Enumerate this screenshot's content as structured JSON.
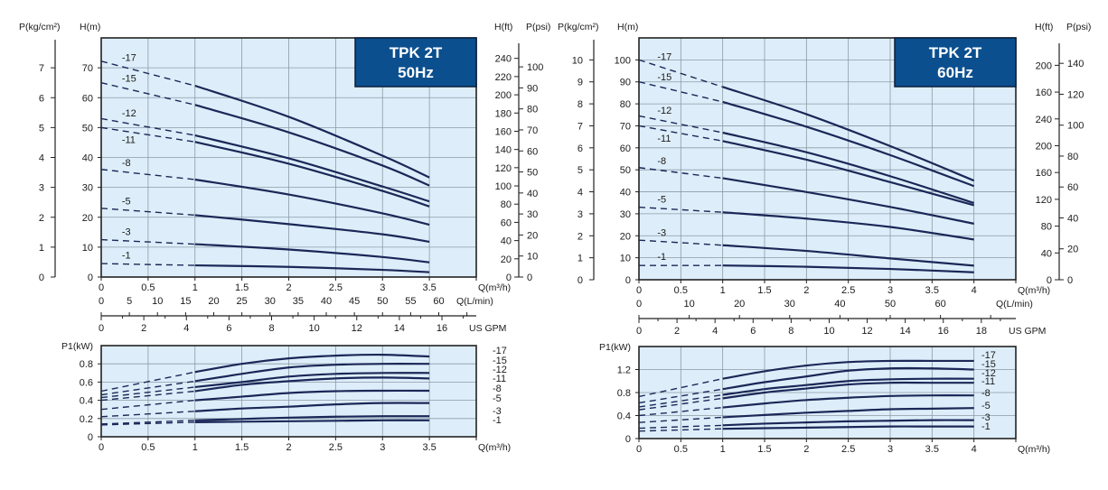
{
  "colors": {
    "plot_background": "#ddeefa",
    "grid": "#8d9aa6",
    "curve": "#1b2757",
    "title_box": "#0b4f8e",
    "title_text": "#ffffff"
  },
  "chart_data": [
    {
      "type": "line",
      "title_lines": [
        "TPK 2T",
        "50Hz"
      ],
      "xlabel": "Q(m³/h)",
      "xlim": [
        0,
        4
      ],
      "x_ticks": [
        "0",
        "0.5",
        "1",
        "1.5",
        "2",
        "2.5",
        "3",
        "3.5"
      ],
      "ylabel": "H(m)",
      "ylim": [
        0,
        80
      ],
      "y_ticks": [
        "0",
        "10",
        "20",
        "30",
        "40",
        "50",
        "60",
        "70"
      ],
      "grid": true,
      "left_axis": {
        "label": "P(kg/cm²)",
        "ticks": [
          "0",
          "1",
          "2",
          "3",
          "4",
          "5",
          "6",
          "7"
        ]
      },
      "right_axis_ft": {
        "label": "H(ft)",
        "ticks": [
          "0",
          "20",
          "40",
          "60",
          "80",
          "100",
          "120",
          "140",
          "160",
          "180",
          "200",
          "220",
          "240"
        ]
      },
      "right_axis_psi": {
        "label": "P(psi)",
        "ticks": [
          "0",
          "10",
          "20",
          "30",
          "40",
          "50",
          "60",
          "70",
          "80",
          "90",
          "100"
        ]
      },
      "axis_lmin": {
        "label": "Q(L/min)",
        "ticks": [
          "0",
          "5",
          "10",
          "15",
          "20",
          "25",
          "30",
          "35",
          "40",
          "45",
          "50",
          "55",
          "60"
        ]
      },
      "axis_gpm": {
        "label": "US GPM",
        "ticks": [
          "0",
          "2",
          "4",
          "6",
          "8",
          "10",
          "12",
          "14",
          "16"
        ]
      },
      "dashed_until_x": 1,
      "x": [
        0,
        1,
        2,
        3,
        3.5
      ],
      "series": [
        {
          "name": "-17",
          "values": [
            72.2,
            64,
            53.6,
            40.6,
            33.3
          ]
        },
        {
          "name": "-15",
          "values": [
            65,
            57.6,
            48.4,
            37.3,
            30.6
          ]
        },
        {
          "name": "-12",
          "values": [
            53,
            47.4,
            39.7,
            30.3,
            25.3
          ]
        },
        {
          "name": "-11",
          "values": [
            50,
            45.2,
            37.9,
            28.8,
            23.6
          ]
        },
        {
          "name": "-8",
          "values": [
            36,
            32.6,
            27.6,
            21.3,
            17.5
          ]
        },
        {
          "name": "-5",
          "values": [
            23,
            20.7,
            17.7,
            14.3,
            11.8
          ]
        },
        {
          "name": "-3",
          "values": [
            12.5,
            11,
            9.2,
            6.7,
            4.9
          ]
        },
        {
          "name": "-1",
          "values": [
            4.5,
            3.9,
            3.4,
            2.4,
            1.6
          ]
        }
      ]
    },
    {
      "type": "line",
      "title_lines": [
        "TPK 2T",
        "60Hz"
      ],
      "xlabel": "Q(m³/h)",
      "xlim": [
        0,
        4.5
      ],
      "x_ticks": [
        "0",
        "0.5",
        "1",
        "1.5",
        "2",
        "2.5",
        "3",
        "3.5",
        "4"
      ],
      "ylabel": "H(m)",
      "ylim": [
        0,
        110
      ],
      "y_ticks": [
        "0",
        "10",
        "20",
        "30",
        "40",
        "50",
        "60",
        "70",
        "80",
        "90",
        "100"
      ],
      "grid": true,
      "left_axis": {
        "label": "P(kg/cm²)",
        "ticks": [
          "0",
          "1",
          "2",
          "3",
          "4",
          "5",
          "6",
          "7",
          "8",
          "9",
          "10"
        ]
      },
      "right_axis_ft": {
        "label": "H(ft)",
        "ticks": [
          "0",
          "40",
          "80",
          "120",
          "160",
          "200",
          "240",
          "160",
          "200"
        ]
      },
      "right_axis_psi": {
        "label": "P(psi)",
        "ticks": [
          "0",
          "20",
          "40",
          "60",
          "80",
          "100",
          "120",
          "140"
        ]
      },
      "axis_lmin": {
        "label": "Q(L/min)",
        "ticks": [
          "0",
          "10",
          "20",
          "30",
          "40",
          "50",
          "60"
        ]
      },
      "axis_gpm": {
        "label": "US GPM",
        "ticks": [
          "0",
          "2",
          "4",
          "6",
          "8",
          "10",
          "12",
          "14",
          "16",
          "18"
        ]
      },
      "dashed_until_x": 1,
      "x": [
        0,
        1,
        2,
        3,
        4
      ],
      "series": [
        {
          "name": "-17",
          "values": [
            100,
            87.7,
            75.3,
            60.8,
            45.1
          ]
        },
        {
          "name": "-15",
          "values": [
            90,
            80.9,
            69.6,
            56.7,
            42.6
          ]
        },
        {
          "name": "-12",
          "values": [
            74.5,
            66.9,
            58,
            47.1,
            34.9
          ]
        },
        {
          "name": "-11",
          "values": [
            70,
            63.1,
            54.6,
            44.4,
            33.9
          ]
        },
        {
          "name": "-8",
          "values": [
            51,
            46.2,
            39.9,
            33.1,
            25.5
          ]
        },
        {
          "name": "-5",
          "values": [
            33,
            30.7,
            27.8,
            24,
            18.3
          ]
        },
        {
          "name": "-3",
          "values": [
            18,
            15.7,
            13.1,
            9.7,
            6.4
          ]
        },
        {
          "name": "-1",
          "values": [
            6.5,
            6.5,
            5.9,
            4.9,
            3.4
          ]
        }
      ]
    },
    {
      "type": "line",
      "xlabel": "Q(m³/h)",
      "xlim": [
        0,
        4
      ],
      "x_ticks": [
        "0",
        "0.5",
        "1",
        "1.5",
        "2",
        "2.5",
        "3",
        "3.5"
      ],
      "ylabel": "P1(kW)",
      "ylim": [
        0,
        1.0
      ],
      "y_ticks": [
        "0",
        "0.2",
        "0.4",
        "0.6",
        "0.8"
      ],
      "grid": true,
      "dashed_until_x": 1,
      "x": [
        0,
        1,
        1.5,
        2,
        2.5,
        3,
        3.5
      ],
      "series": [
        {
          "name": "-17",
          "values": [
            0.5,
            0.71,
            0.8,
            0.86,
            0.89,
            0.9,
            0.88
          ]
        },
        {
          "name": "-15",
          "values": [
            0.46,
            0.61,
            0.69,
            0.76,
            0.79,
            0.8,
            0.8
          ]
        },
        {
          "name": "-12",
          "values": [
            0.43,
            0.545,
            0.6,
            0.66,
            0.69,
            0.7,
            0.7
          ]
        },
        {
          "name": "-11",
          "values": [
            0.4,
            0.5,
            0.57,
            0.61,
            0.64,
            0.65,
            0.64
          ]
        },
        {
          "name": "-8",
          "values": [
            0.3,
            0.4,
            0.44,
            0.48,
            0.5,
            0.505,
            0.505
          ]
        },
        {
          "name": "-5",
          "values": [
            0.22,
            0.28,
            0.31,
            0.33,
            0.355,
            0.37,
            0.37
          ]
        },
        {
          "name": "-3",
          "values": [
            0.14,
            0.18,
            0.195,
            0.21,
            0.22,
            0.225,
            0.225
          ]
        },
        {
          "name": "-1",
          "values": [
            0.13,
            0.16,
            0.165,
            0.17,
            0.175,
            0.18,
            0.18
          ]
        }
      ]
    },
    {
      "type": "line",
      "xlabel": "Q(m³/h)",
      "xlim": [
        0,
        4.5
      ],
      "x_ticks": [
        "0",
        "0.5",
        "1",
        "1.5",
        "2",
        "2.5",
        "3",
        "3.5",
        "4"
      ],
      "ylabel": "P1(kW)",
      "ylim": [
        0,
        1.6
      ],
      "y_ticks": [
        "0",
        "0.4",
        "0.8",
        "1.2"
      ],
      "grid": true,
      "dashed_until_x": 1,
      "x": [
        0,
        1,
        1.5,
        2,
        2.5,
        3,
        3.5,
        4
      ],
      "series": [
        {
          "name": "-17",
          "values": [
            0.73,
            1.04,
            1.17,
            1.27,
            1.33,
            1.35,
            1.35,
            1.35
          ]
        },
        {
          "name": "-15",
          "values": [
            0.62,
            0.86,
            0.98,
            1.08,
            1.18,
            1.22,
            1.22,
            1.2
          ]
        },
        {
          "name": "-12",
          "values": [
            0.55,
            0.76,
            0.86,
            0.93,
            1.0,
            1.03,
            1.04,
            1.04
          ]
        },
        {
          "name": "-11",
          "values": [
            0.5,
            0.7,
            0.8,
            0.87,
            0.94,
            0.97,
            0.97,
            0.97
          ]
        },
        {
          "name": "-8",
          "values": [
            0.4,
            0.54,
            0.61,
            0.67,
            0.71,
            0.74,
            0.75,
            0.75
          ]
        },
        {
          "name": "-5",
          "values": [
            0.28,
            0.37,
            0.41,
            0.45,
            0.48,
            0.51,
            0.52,
            0.53
          ]
        },
        {
          "name": "-3",
          "values": [
            0.18,
            0.23,
            0.26,
            0.28,
            0.3,
            0.31,
            0.32,
            0.32
          ]
        },
        {
          "name": "-1",
          "values": [
            0.13,
            0.17,
            0.18,
            0.19,
            0.2,
            0.21,
            0.21,
            0.21
          ]
        }
      ]
    }
  ]
}
